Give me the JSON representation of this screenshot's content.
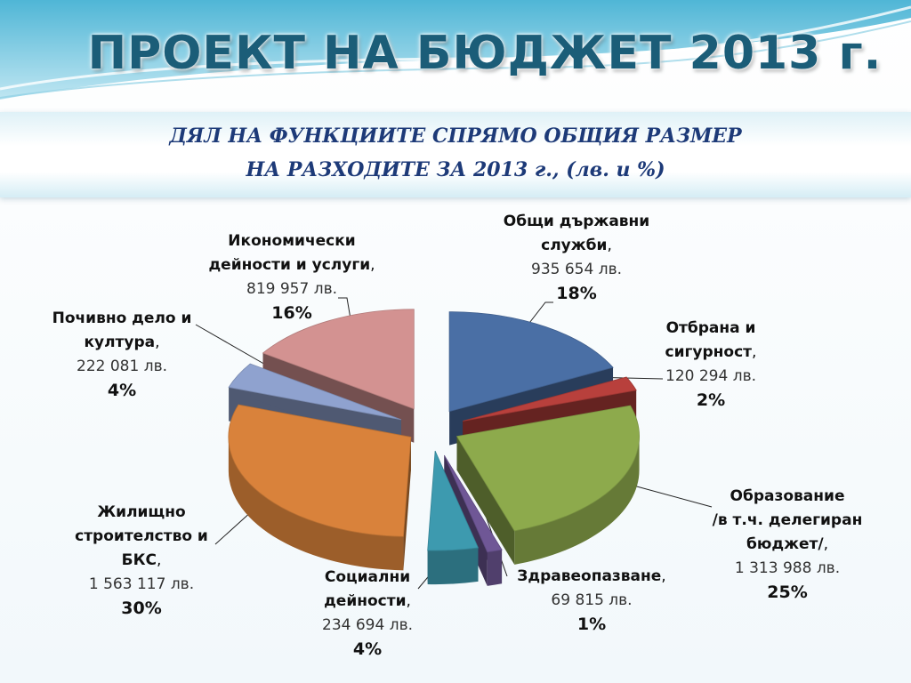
{
  "title": "ПРОЕКТ НА БЮДЖЕТ 2013 г.",
  "subtitle_line1": "ДЯЛ НА ФУНКЦИИТЕ СПРЯМО ОБЩИЯ РАЗМЕР",
  "subtitle_line2": "НА РАЗХОДИТЕ ЗА 2013 г., (лв. и %)",
  "chart_data": {
    "type": "pie",
    "title": "ДЯЛ НА ФУНКЦИИТЕ СПРЯМО ОБЩИЯ РАЗМЕР НА РАЗХОДИТЕ ЗА 2013 г., (лв. и %)",
    "unit": "лв.",
    "slices": [
      {
        "label": "Общи държавни служби",
        "value": 935654,
        "amount_text": "935 654 лв.",
        "percent_text": "18%",
        "color": "#4a6fa5"
      },
      {
        "label": "Отбрана и сигурност",
        "value": 120294,
        "amount_text": "120 294 лв.",
        "percent_text": "2%",
        "color": "#b8403c"
      },
      {
        "label": "Образование /в т.ч. делегиран бюджет/",
        "value": 1313988,
        "amount_text": "1 313 988 лв.",
        "percent_text": "25%",
        "color": "#8daa4c"
      },
      {
        "label": "Здравеопазване",
        "value": 69815,
        "amount_text": "69 815 лв.",
        "percent_text": "1%",
        "color": "#6f5796"
      },
      {
        "label": "Социални дейности",
        "value": 234694,
        "amount_text": "234 694 лв.",
        "percent_text": "4%",
        "color": "#3d9aaf"
      },
      {
        "label": "Жилищно строителство и БКС",
        "value": 1563117,
        "amount_text": "1 563 117 лв.",
        "percent_text": "30%",
        "color": "#d9823b"
      },
      {
        "label": "Почивно дело и култура",
        "value": 222081,
        "amount_text": "222 081 лв.",
        "percent_text": "4%",
        "color": "#8fa2cf"
      },
      {
        "label": "Икономически дейности и услуги",
        "value": 819957,
        "amount_text": "819 957 лв.",
        "percent_text": "16%",
        "color": "#d39291"
      }
    ]
  },
  "labels": {
    "general": {
      "l1": "Общи държавни",
      "l2": "служби",
      "sep": ",",
      "amount": "935 654 лв.",
      "pct": "18%"
    },
    "defense": {
      "l1": "Отбрана и",
      "l2": "сигурност",
      "sep": ",",
      "amount": "120 294 лв.",
      "pct": "2%"
    },
    "education": {
      "l1": "Образование",
      "l2": "/в т.ч. делегиран",
      "l3": "бюджет/",
      "sep": ",",
      "amount": "1 313 988 лв.",
      "pct": "25%"
    },
    "health": {
      "l1": "Здравеопазване",
      "sep": ",",
      "amount": "69 815 лв.",
      "pct": "1%"
    },
    "social": {
      "l1": "Социални",
      "l2": "дейности",
      "sep": ",",
      "amount": "234 694 лв.",
      "pct": "4%"
    },
    "housing": {
      "l1": "Жилищно",
      "l2": "строителство и",
      "l3": "БКС",
      "sep": ",",
      "amount": "1 563 117 лв.",
      "pct": "30%"
    },
    "culture": {
      "l1": "Почивно дело и",
      "l2": "култура",
      "sep": ",",
      "amount": "222 081 лв.",
      "pct": "4%"
    },
    "economic": {
      "l1": "Икономически",
      "l2": "дейности и услуги",
      "sep": ",",
      "amount": "819 957 лв.",
      "pct": "16%"
    }
  }
}
